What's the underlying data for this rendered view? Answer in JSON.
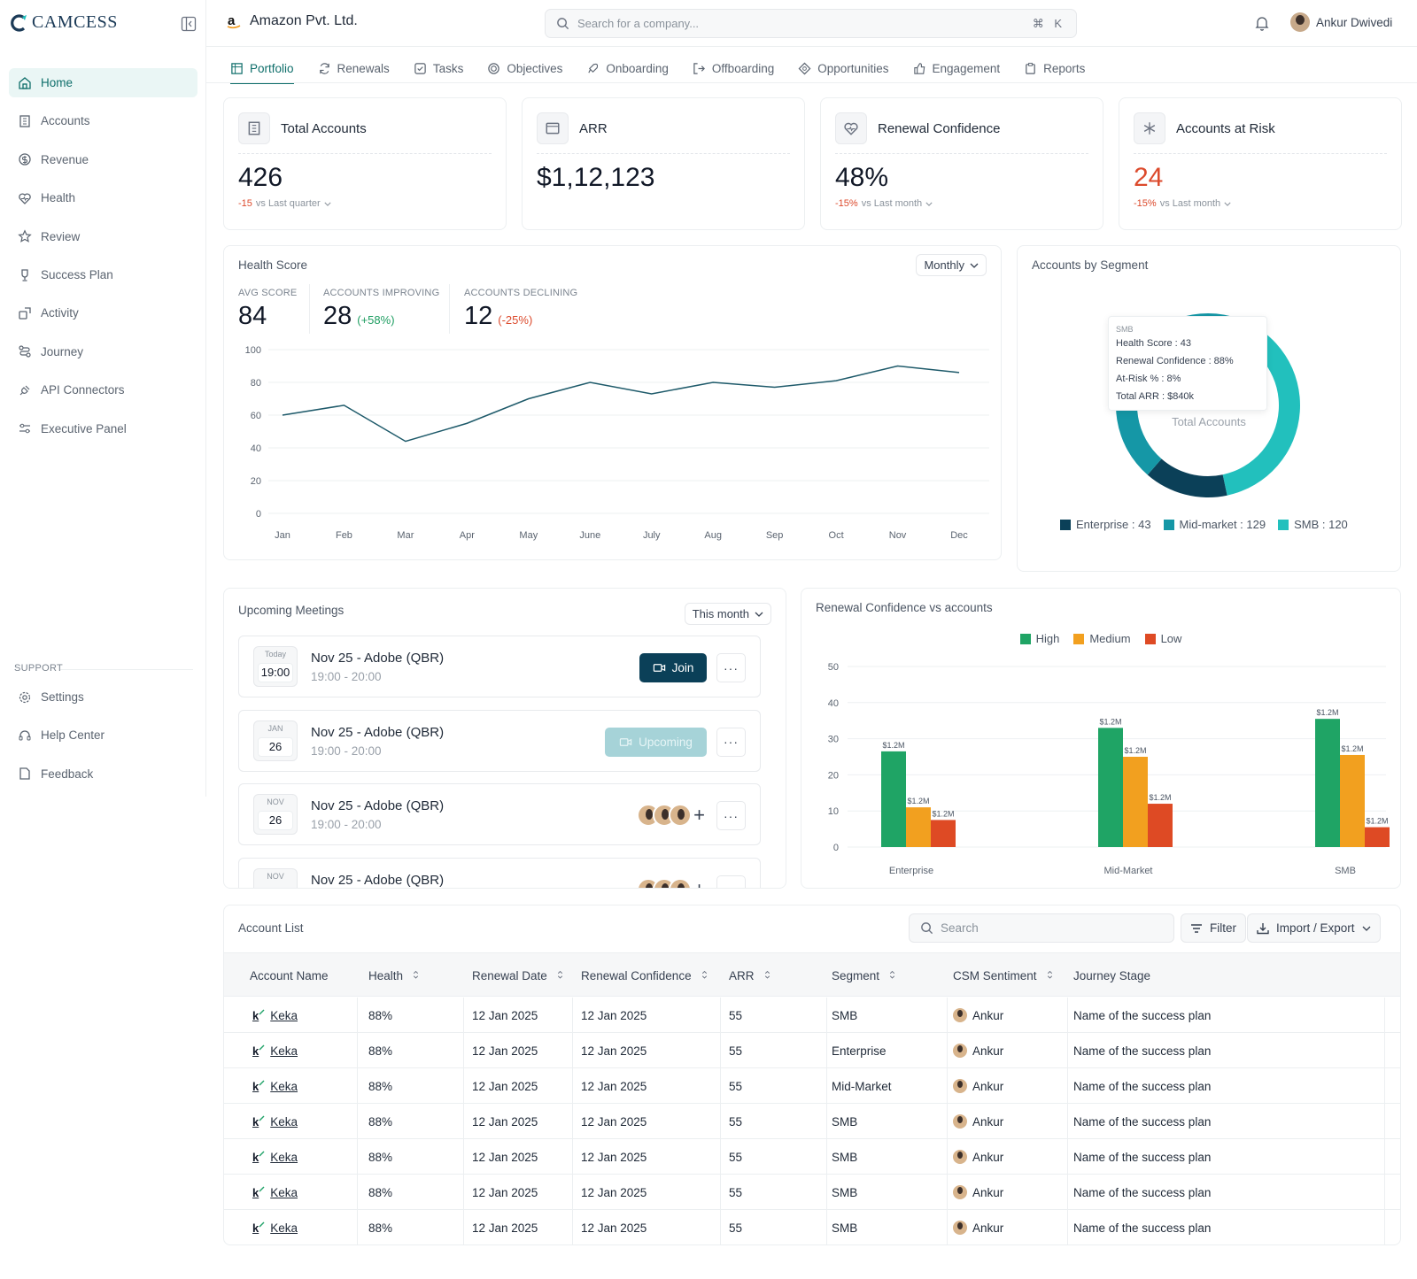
{
  "brand": {
    "name": "CAMCESS"
  },
  "sidebar": {
    "items": [
      {
        "label": "Home",
        "icon": "home-icon",
        "active": true
      },
      {
        "label": "Accounts",
        "icon": "building-icon"
      },
      {
        "label": "Revenue",
        "icon": "dollar-icon"
      },
      {
        "label": "Health",
        "icon": "heart-icon"
      },
      {
        "label": "Review",
        "icon": "star-icon"
      },
      {
        "label": "Success Plan",
        "icon": "trophy-icon"
      },
      {
        "label": "Activity",
        "icon": "activity-icon"
      },
      {
        "label": "Journey",
        "icon": "route-icon"
      },
      {
        "label": "API Connectors",
        "icon": "plug-icon"
      },
      {
        "label": "Executive Panel",
        "icon": "sliders-icon"
      }
    ],
    "support_label": "SUPPORT",
    "support_items": [
      {
        "label": "Settings",
        "icon": "gear-icon"
      },
      {
        "label": "Help Center",
        "icon": "headset-icon"
      },
      {
        "label": "Feedback",
        "icon": "file-icon"
      }
    ]
  },
  "header": {
    "company": "Amazon Pvt. Ltd.",
    "search_placeholder": "Search for a company...",
    "shortcut": "⌘ K",
    "user": "Ankur Dwivedi"
  },
  "tabs": [
    {
      "label": "Portfolio",
      "active": true
    },
    {
      "label": "Renewals"
    },
    {
      "label": "Tasks"
    },
    {
      "label": "Objectives"
    },
    {
      "label": "Onboarding"
    },
    {
      "label": "Offboarding"
    },
    {
      "label": "Opportunities"
    },
    {
      "label": "Engagement"
    },
    {
      "label": "Reports"
    }
  ],
  "kpis": [
    {
      "title": "Total Accounts",
      "value": "426",
      "change": "-15",
      "compare": "vs Last quarter"
    },
    {
      "title": "ARR",
      "value": "$1,12,123",
      "change": "",
      "compare": ""
    },
    {
      "title": "Renewal Confidence",
      "value": "48%",
      "change": "-15%",
      "compare": "vs Last month"
    },
    {
      "title": "Accounts at Risk",
      "value": "24",
      "change": "-15%",
      "compare": "vs Last month"
    }
  ],
  "health": {
    "title": "Health Score",
    "period": "Monthly",
    "avg_label": "AVG SCORE",
    "avg": "84",
    "imp_label": "ACCOUNTS IMPROVING",
    "imp": "28",
    "imp_chg": "(+58%)",
    "dec_label": "ACCOUNTS DECLINING",
    "dec": "12",
    "dec_chg": "(-25%)"
  },
  "segment": {
    "title": "Accounts by Segment",
    "center_label": "Total Accounts",
    "tooltip": {
      "name": "SMB",
      "l1": "Health Score : 43",
      "l2": "Renewal Confidence : 88%",
      "l3": "At-Risk % : 8%",
      "l4": "Total ARR : $840k"
    },
    "legend": [
      {
        "label": "Enterprise : 43",
        "color": "#0b4058"
      },
      {
        "label": "Mid-market : 129",
        "color": "#1597a6"
      },
      {
        "label": "SMB : 120",
        "color": "#22c0bd"
      }
    ]
  },
  "meetings": {
    "title": "Upcoming Meetings",
    "period": "This month",
    "items": [
      {
        "top": "Today",
        "day": "19:00",
        "title": "Nov 25 - Adobe (QBR)",
        "time": "19:00 - 20:00",
        "action": "Join"
      },
      {
        "top": "JAN",
        "day": "26",
        "title": "Nov 25 - Adobe (QBR)",
        "time": "19:00 - 20:00",
        "action": "Upcoming"
      },
      {
        "top": "NOV",
        "day": "26",
        "title": "Nov 25 - Adobe (QBR)",
        "time": "19:00 - 20:00",
        "action": "faces"
      },
      {
        "top": "NOV",
        "day": "",
        "title": "Nov 25 - Adobe (QBR)",
        "time": "",
        "action": "faces"
      }
    ],
    "more_label": "···"
  },
  "chart_data": [
    {
      "type": "line",
      "x": [
        "Jan",
        "Feb",
        "Mar",
        "Apr",
        "May",
        "June",
        "July",
        "Aug",
        "Sep",
        "Oct",
        "Nov",
        "Dec"
      ],
      "series": [
        {
          "values": [
            60,
            66,
            44,
            55,
            70,
            80,
            73,
            80,
            77,
            81,
            90,
            86
          ]
        }
      ],
      "ylim": [
        0,
        100
      ],
      "yticks": [
        0,
        20,
        40,
        60,
        80,
        100
      ],
      "grid": true,
      "color": "#1e5a6a"
    },
    {
      "type": "pie",
      "labels": [
        "Enterprise",
        "Mid-market",
        "SMB"
      ],
      "values": [
        43,
        129,
        120
      ],
      "colors": [
        "#0b4058",
        "#1597a6",
        "#22c0bd"
      ]
    },
    {
      "type": "bar",
      "title": "Renewal Confidence vs accounts",
      "categories": [
        "Enterprise",
        "Mid-Market",
        "SMB"
      ],
      "series": [
        {
          "name": "High",
          "values": [
            26.5,
            33,
            35.5
          ],
          "color": "#1fa465"
        },
        {
          "name": "Medium",
          "values": [
            11,
            25,
            25.5
          ],
          "color": "#f2a01f"
        },
        {
          "name": "Low",
          "values": [
            7.5,
            12,
            5.5
          ],
          "color": "#de4a24"
        }
      ],
      "data_labels": "$1.2M",
      "ylim": [
        0,
        50
      ],
      "yticks": [
        0,
        10,
        20,
        30,
        40,
        50
      ],
      "legend": "top-center"
    }
  ],
  "accounts": {
    "title": "Account List",
    "search_placeholder": "Search",
    "filter": "Filter",
    "import": "Import / Export",
    "columns": [
      "Account Name",
      "Health",
      "Renewal Date",
      "Renewal Confidence",
      "ARR",
      "Segment",
      "CSM Sentiment",
      "Journey Stage"
    ],
    "rows": [
      [
        "Keka",
        "88%",
        "12 Jan 2025",
        "12 Jan 2025",
        "55",
        "SMB",
        "Ankur",
        "Name of the success plan"
      ],
      [
        "Keka",
        "88%",
        "12 Jan 2025",
        "12 Jan 2025",
        "55",
        "Enterprise",
        "Ankur",
        "Name of the success plan"
      ],
      [
        "Keka",
        "88%",
        "12 Jan 2025",
        "12 Jan 2025",
        "55",
        "Mid-Market",
        "Ankur",
        "Name of the success plan"
      ],
      [
        "Keka",
        "88%",
        "12 Jan 2025",
        "12 Jan 2025",
        "55",
        "SMB",
        "Ankur",
        "Name of the success plan"
      ],
      [
        "Keka",
        "88%",
        "12 Jan 2025",
        "12 Jan 2025",
        "55",
        "SMB",
        "Ankur",
        "Name of the success plan"
      ],
      [
        "Keka",
        "88%",
        "12 Jan 2025",
        "12 Jan 2025",
        "55",
        "SMB",
        "Ankur",
        "Name of the success plan"
      ],
      [
        "Keka",
        "88%",
        "12 Jan 2025",
        "12 Jan 2025",
        "55",
        "SMB",
        "Ankur",
        "Name of the success plan"
      ]
    ]
  }
}
